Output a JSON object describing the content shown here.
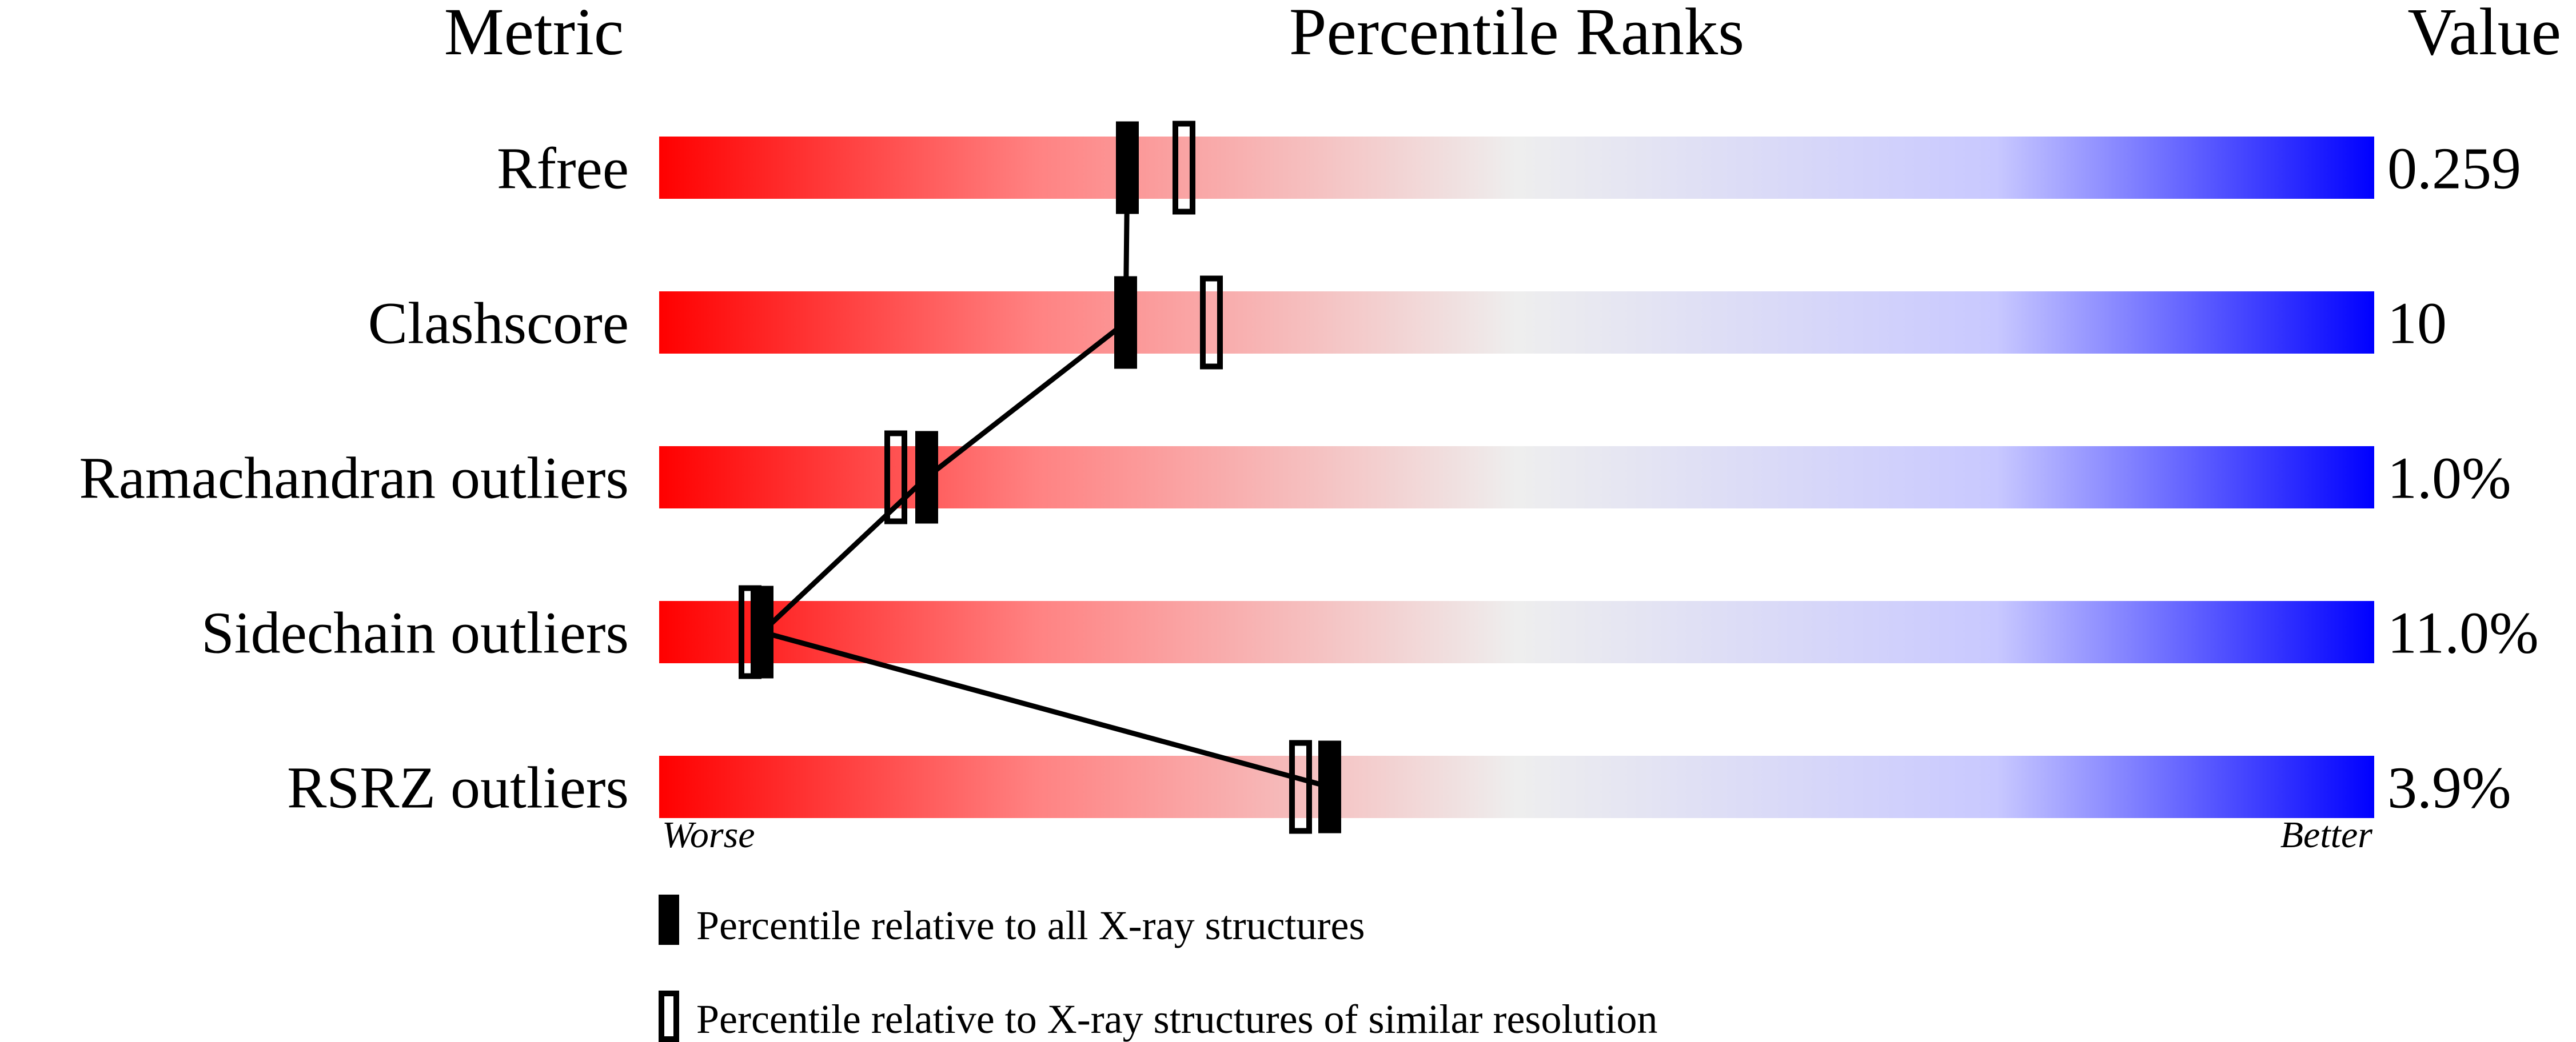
{
  "chart_data": {
    "type": "percentile-slider",
    "headers": {
      "metric": "Metric",
      "ranks": "Percentile Ranks",
      "value": "Value"
    },
    "xlim": [
      0,
      100
    ],
    "axis_labels": {
      "left": "Worse",
      "right": "Better"
    },
    "gradient_colors": [
      "#ff0000",
      "#eeeeee",
      "#0000ff"
    ],
    "rows": [
      {
        "metric": "Rfree",
        "value": "0.259",
        "percentile_all": 27.3,
        "percentile_similar": 30.6
      },
      {
        "metric": "Clashscore",
        "value": "10",
        "percentile_all": 27.2,
        "percentile_similar": 32.2
      },
      {
        "metric": "Ramachandran outliers",
        "value": "1.0%",
        "percentile_all": 15.6,
        "percentile_similar": 13.8
      },
      {
        "metric": "Sidechain outliers",
        "value": "11.0%",
        "percentile_all": 6.0,
        "percentile_similar": 5.3
      },
      {
        "metric": "RSRZ outliers",
        "value": "3.9%",
        "percentile_all": 39.1,
        "percentile_similar": 37.4
      }
    ],
    "legend": [
      {
        "marker": "filled",
        "label": "Percentile relative to all X-ray structures"
      },
      {
        "marker": "open",
        "label": "Percentile relative to X-ray structures of similar resolution"
      }
    ]
  }
}
